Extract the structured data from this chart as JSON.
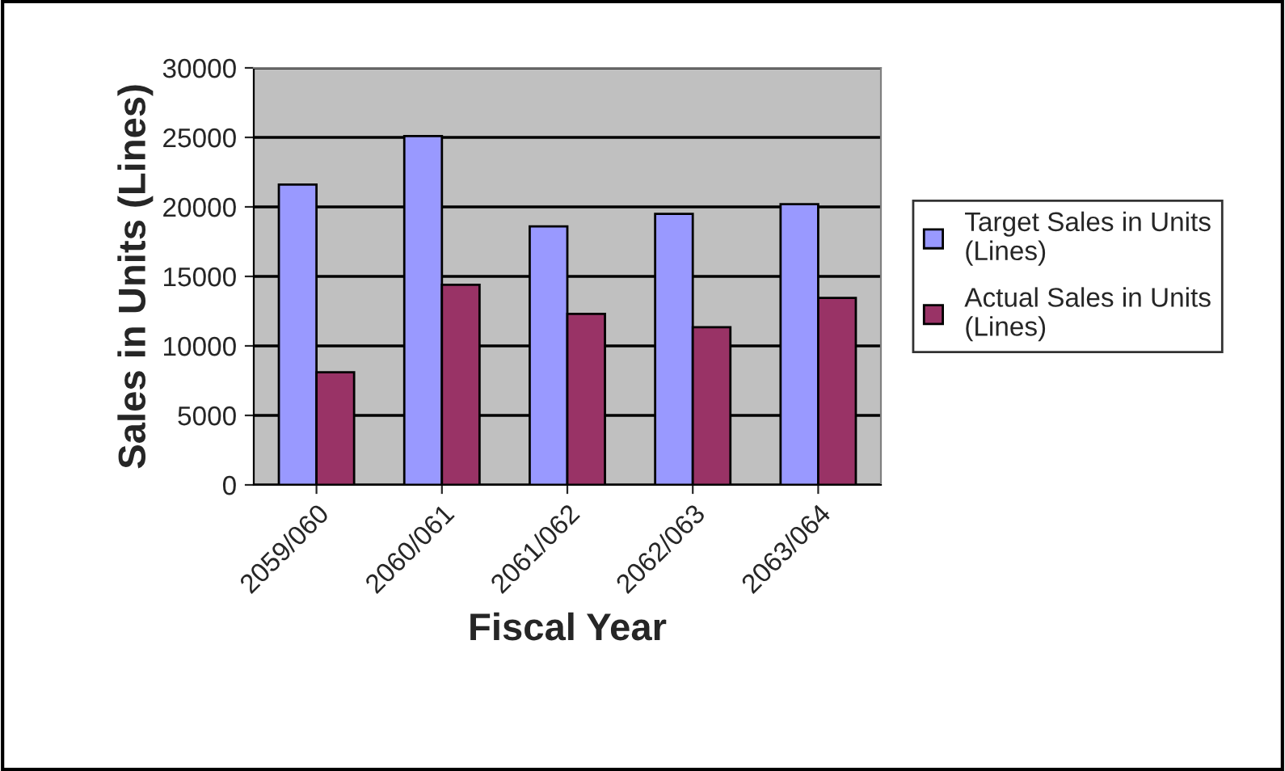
{
  "chart_data": {
    "type": "bar",
    "xlabel": "Fiscal Year",
    "ylabel": "Sales in Units (Lines)",
    "categories": [
      "2059/060",
      "2060/061",
      "2061/062",
      "2062/063",
      "2063/064"
    ],
    "series": [
      {
        "name": "Target Sales in Units\n(Lines)",
        "color": "#9999ff",
        "values": [
          21600,
          25100,
          18600,
          19500,
          20200
        ]
      },
      {
        "name": "Actual Sales in Units\n(Lines)",
        "color": "#993366",
        "values": [
          8100,
          14400,
          12300,
          11350,
          13450
        ]
      }
    ],
    "ylim": [
      0,
      30000
    ],
    "yticks": [
      0,
      5000,
      10000,
      15000,
      20000,
      25000,
      30000
    ],
    "grid": "y",
    "legend": "right"
  }
}
